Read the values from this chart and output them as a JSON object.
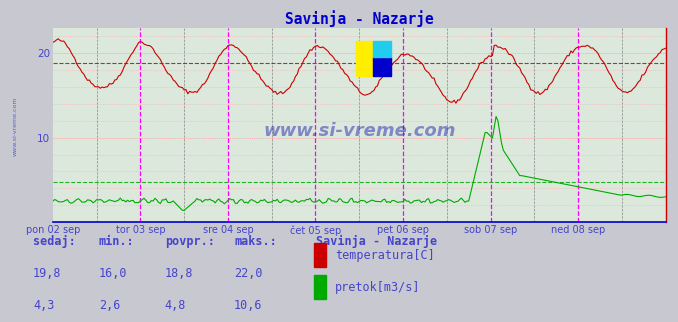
{
  "title": "Savinja - Nazarje",
  "fig_bg_color": "#c8c8c8",
  "plot_bg_color": "#e0e8e0",
  "text_color": "#4444cc",
  "title_color": "#0000cc",
  "y_min": 0,
  "y_max": 23.0,
  "y_ticks": [
    10,
    20
  ],
  "avg_temp": 18.8,
  "avg_flow": 4.8,
  "x_labels": [
    "pon 02 sep",
    "tor 03 sep",
    "sre 04 sep",
    "čet 05 sep",
    "pet 06 sep",
    "sob 07 sep",
    "ned 08 sep"
  ],
  "watermark": "www.si-vreme.com",
  "legend_title": "Savinja - Nazarje",
  "legend_items": [
    {
      "label": "temperatura[C]",
      "color": "#cc0000"
    },
    {
      "label": "pretok[m3/s]",
      "color": "#00aa00"
    }
  ],
  "stats": {
    "headers": [
      "sedaj:",
      "min.:",
      "povpr.:",
      "maks.:"
    ],
    "temp": [
      19.8,
      16.0,
      18.8,
      22.0
    ],
    "flow": [
      4.3,
      2.6,
      4.8,
      10.6
    ]
  },
  "temp_color": "#cc0000",
  "flow_color": "#00aa00",
  "n_points": 337
}
